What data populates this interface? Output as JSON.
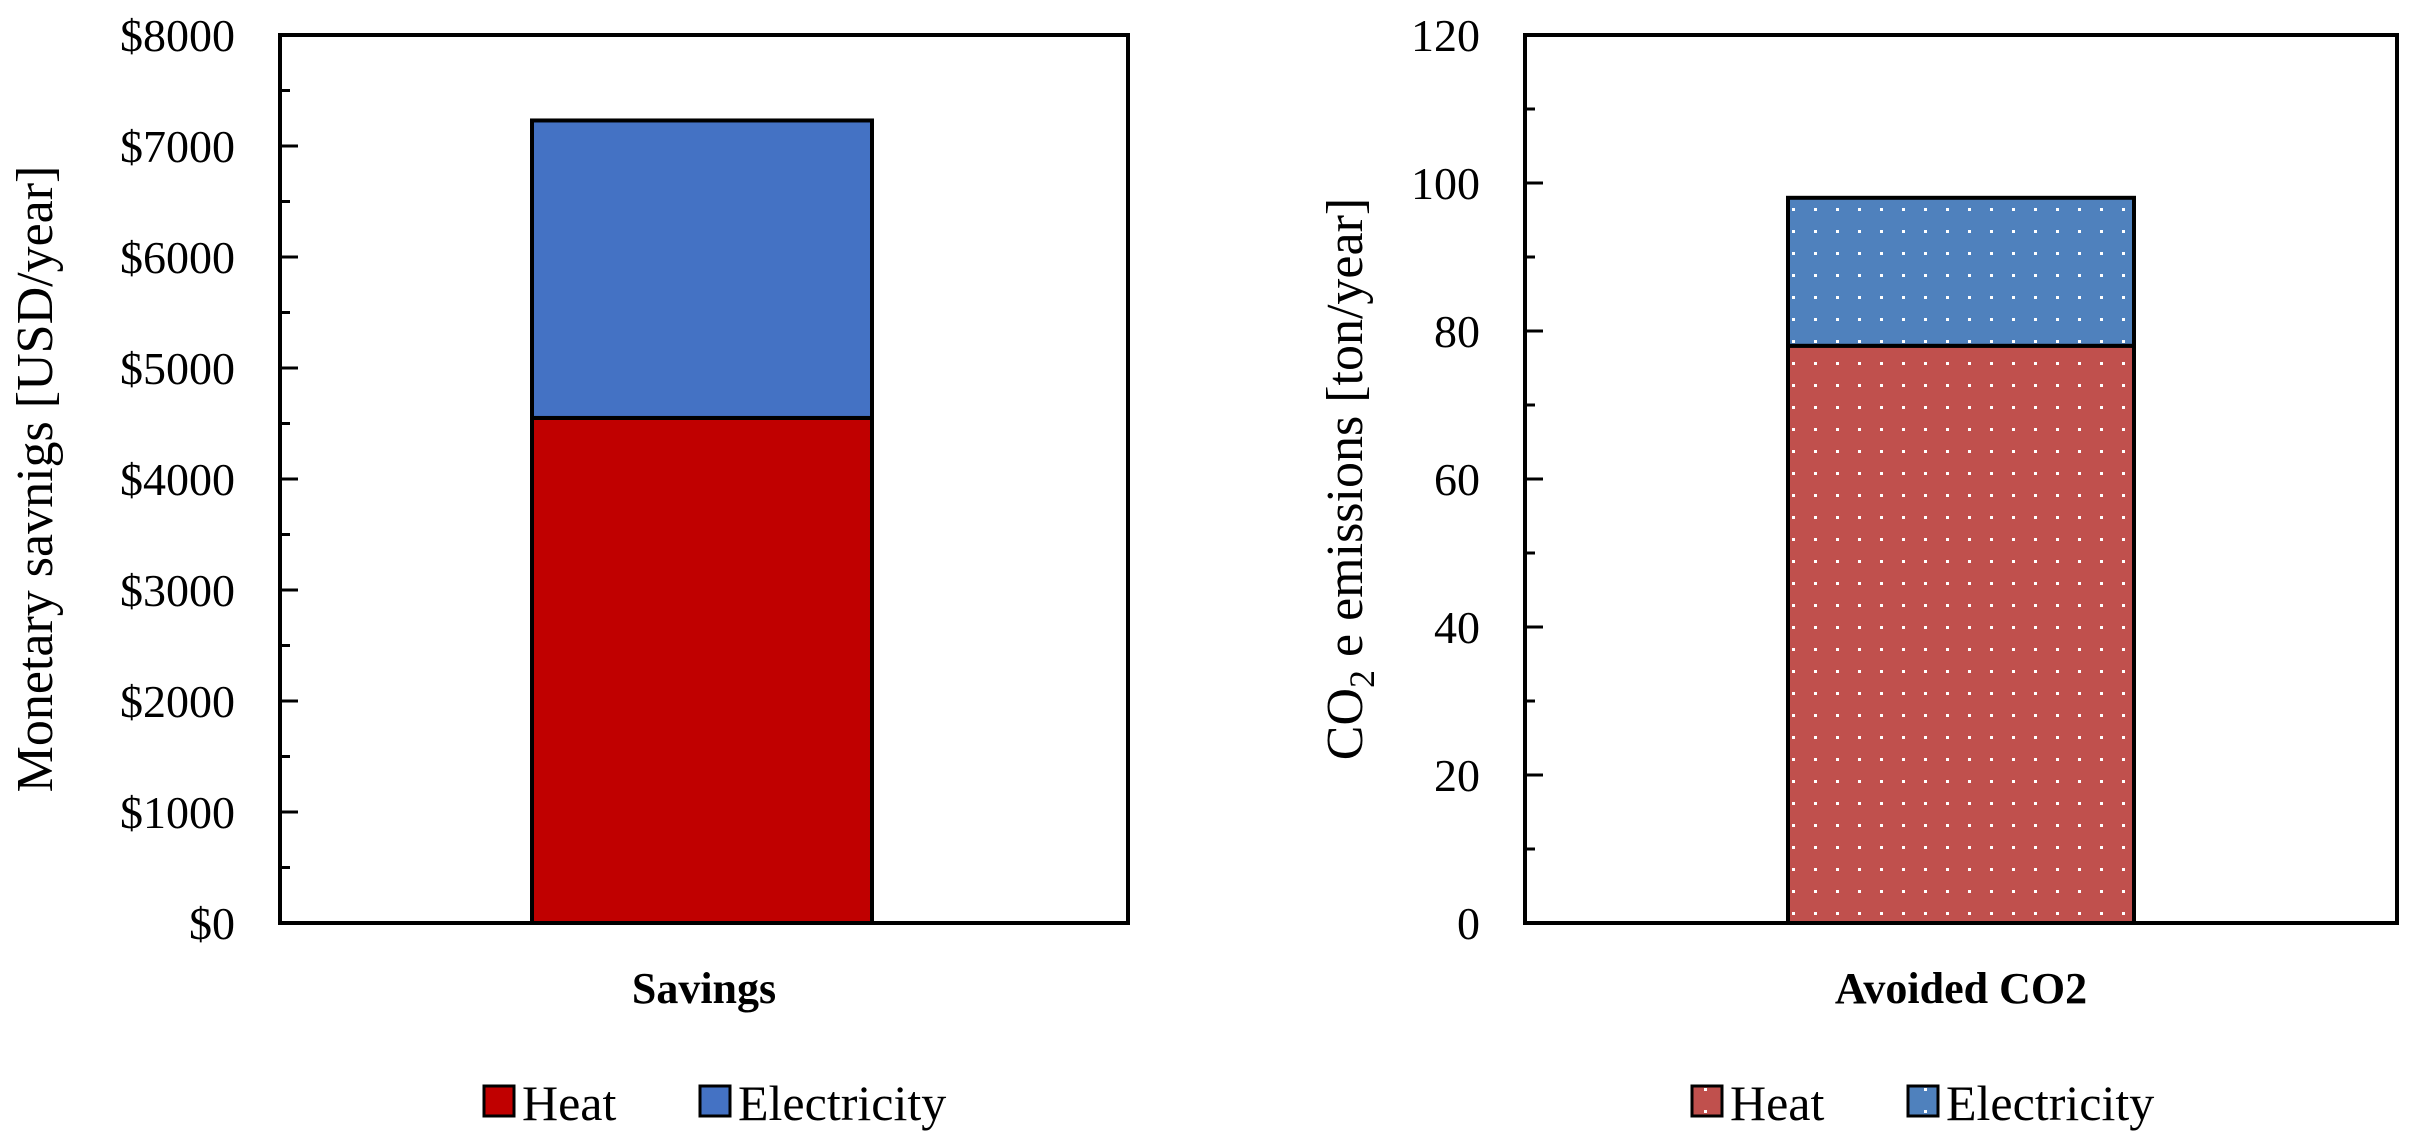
{
  "colors": {
    "heat": "#c00000",
    "electricity": "#4472c4",
    "heat_dotted": "#c0504d",
    "electricity_dotted": "#4f81bd"
  },
  "chart_data": [
    {
      "type": "bar",
      "stacked": true,
      "categories": [
        "Savings"
      ],
      "series": [
        {
          "name": "Heat",
          "values": [
            4550
          ]
        },
        {
          "name": "Electricity",
          "values": [
            2680
          ]
        }
      ],
      "ylabel": "Monetary savnigs [USD/year]",
      "ylim": [
        0,
        8000
      ],
      "yticks": [
        "$0",
        "$1000",
        "$2000",
        "$3000",
        "$4000",
        "$5000",
        "$6000",
        "$7000",
        "$8000"
      ],
      "legend": [
        "Heat",
        "Electricity"
      ],
      "legend_position": "bottom"
    },
    {
      "type": "bar",
      "stacked": true,
      "categories": [
        "Avoided CO2"
      ],
      "series": [
        {
          "name": "Heat",
          "values": [
            78
          ]
        },
        {
          "name": "Electricity",
          "values": [
            20
          ]
        }
      ],
      "ylabel_main": "CO",
      "ylabel_sub": "2",
      "ylabel_rest": " e emissions [ton/year]",
      "ylim": [
        0,
        120
      ],
      "yticks": [
        "0",
        "20",
        "40",
        "60",
        "80",
        "100",
        "120"
      ],
      "legend": [
        "Heat",
        "Electricity"
      ],
      "legend_position": "bottom"
    }
  ]
}
